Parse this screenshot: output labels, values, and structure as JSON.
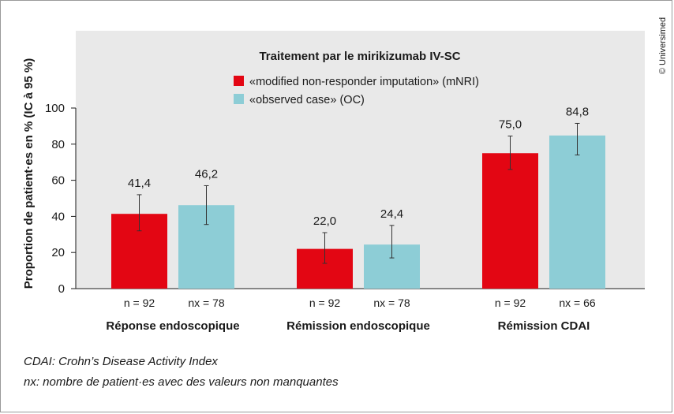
{
  "chart_data": {
    "type": "bar",
    "title": "Traitement par le mirikizumab IV-SC",
    "ylabel": "Proportion de patient·es en % (IC à 95 %)",
    "xlabel": "",
    "ylim": [
      0,
      100
    ],
    "yticks": [
      "0",
      "20",
      "40",
      "60",
      "80",
      "100"
    ],
    "categories": [
      "Réponse endoscopique",
      "Rémission endoscopique",
      "Rémission CDAI"
    ],
    "legend_position": "top",
    "grid": false,
    "series": [
      {
        "name": "«modified non-responder imputation» (mNRI)",
        "color": "#e30613",
        "values": [
          41.4,
          22.0,
          75.0
        ],
        "value_labels": [
          "41,4",
          "22,0",
          "75,0"
        ],
        "ci_low": [
          32,
          14,
          66
        ],
        "ci_high": [
          52,
          31,
          84.5
        ],
        "n_labels": [
          "n = 92",
          "n = 92",
          "n = 92"
        ]
      },
      {
        "name": "«observed case» (OC)",
        "color": "#8dcdd6",
        "values": [
          46.2,
          24.4,
          84.8
        ],
        "value_labels": [
          "46,2",
          "24,4",
          "84,8"
        ],
        "ci_low": [
          35.5,
          17,
          74
        ],
        "ci_high": [
          57,
          35,
          91.5
        ],
        "n_labels": [
          "nx = 78",
          "nx = 78",
          "nx = 66"
        ]
      }
    ]
  },
  "credit": "© Universimed",
  "footnotes": [
    "CDAI: Crohn’s Disease Activity Index",
    "nx: nombre de patient·es avec des valeurs non manquantes"
  ]
}
